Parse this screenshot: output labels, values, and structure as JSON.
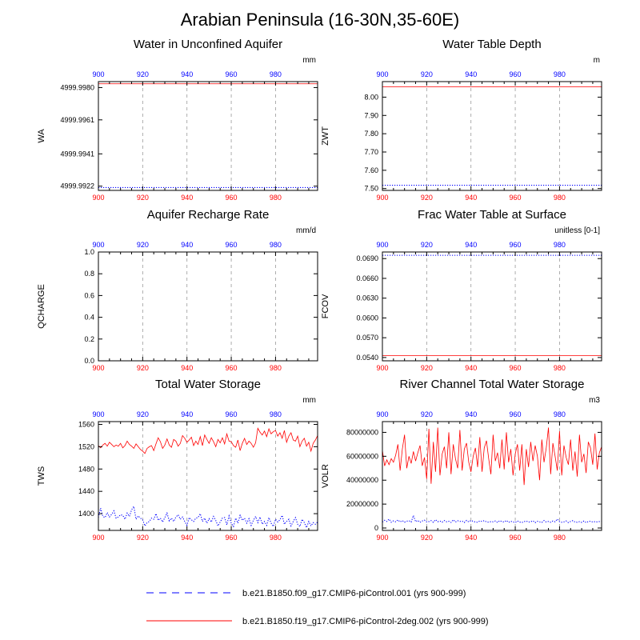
{
  "page_title": "Arabian Peninsula (16-30N,35-60E)",
  "chart_data": [
    {
      "type": "line",
      "title": "Water in Unconfined Aquifer",
      "ylabel": "WA",
      "units": "mm",
      "x_range": [
        900,
        999
      ],
      "x_ticks": [
        900,
        920,
        940,
        960,
        980
      ],
      "ylim": [
        4999.99195,
        4999.99835
      ],
      "y_ticks": [
        "4999.9922",
        "4999.9941",
        "4999.9961",
        "4999.9980"
      ],
      "grid": "vertical dashed",
      "series": [
        {
          "color": "#0000ff",
          "dash": "dotted",
          "constant": 4999.99212
        },
        {
          "color": "#ff0000",
          "dash": "solid",
          "constant": 4999.99822
        }
      ]
    },
    {
      "type": "line",
      "title": "Water Table Depth",
      "ylabel": "ZWT",
      "units": "m",
      "x_range": [
        900,
        999
      ],
      "x_ticks": [
        900,
        920,
        940,
        960,
        980
      ],
      "ylim": [
        7.49,
        8.085
      ],
      "y_ticks": [
        "7.50",
        "7.60",
        "7.70",
        "7.80",
        "7.90",
        "8.00"
      ],
      "grid": "vertical dashed",
      "series": [
        {
          "color": "#0000ff",
          "dash": "dotted",
          "constant": 7.518
        },
        {
          "color": "#ff0000",
          "dash": "solid",
          "constant": 8.057
        }
      ]
    },
    {
      "type": "line",
      "title": "Aquifer Recharge Rate",
      "ylabel": "QCHARGE",
      "units": "mm/d",
      "x_range": [
        900,
        999
      ],
      "x_ticks": [
        900,
        920,
        940,
        960,
        980
      ],
      "ylim": [
        0,
        1.0
      ],
      "y_ticks": [
        "0.0",
        "0.2",
        "0.4",
        "0.6",
        "0.8",
        "1.0"
      ],
      "grid": "vertical dashed",
      "series": [
        {
          "color": "#0000ff",
          "dash": "dotted",
          "constant": 0.0
        },
        {
          "color": "#ff0000",
          "dash": "solid",
          "constant": 0.0
        }
      ]
    },
    {
      "type": "line",
      "title": "Frac Water Table at Surface",
      "ylabel": "FCOV",
      "units": "unitless [0-1]",
      "x_range": [
        900,
        999
      ],
      "x_ticks": [
        900,
        920,
        940,
        960,
        980
      ],
      "ylim": [
        0.0535,
        0.07
      ],
      "y_ticks": [
        "0.0540",
        "0.0570",
        "0.0600",
        "0.0630",
        "0.0660",
        "0.0690"
      ],
      "grid": "vertical dashed",
      "series": [
        {
          "color": "#0000ff",
          "dash": "dotted",
          "constant": 0.0695
        },
        {
          "color": "#ff0000",
          "dash": "solid",
          "constant": 0.0543
        }
      ]
    },
    {
      "type": "line",
      "title": "Total Water Storage",
      "ylabel": "TWS",
      "units": "mm",
      "x_range": [
        900,
        999
      ],
      "x_ticks": [
        900,
        920,
        940,
        960,
        980
      ],
      "ylim": [
        1370,
        1565
      ],
      "y_ticks": [
        "1400",
        "1440",
        "1480",
        "1520",
        "1560"
      ],
      "grid": "vertical dashed",
      "series": [
        {
          "color": "#0000ff",
          "dash": "dotted",
          "start_year": 900,
          "values": [
            1393,
            1410,
            1395,
            1393,
            1402,
            1394,
            1399,
            1405,
            1392,
            1394,
            1398,
            1397,
            1390,
            1401,
            1395,
            1407,
            1413,
            1390,
            1396,
            1392,
            1389,
            1378,
            1384,
            1386,
            1392,
            1390,
            1400,
            1388,
            1392,
            1385,
            1393,
            1401,
            1387,
            1392,
            1386,
            1394,
            1398,
            1390,
            1394,
            1386,
            1379,
            1393,
            1389,
            1386,
            1392,
            1393,
            1400,
            1386,
            1392,
            1383,
            1391,
            1385,
            1395,
            1388,
            1378,
            1385,
            1392,
            1393,
            1380,
            1396,
            1383,
            1377,
            1392,
            1383,
            1397,
            1388,
            1392,
            1383,
            1391,
            1379,
            1388,
            1395,
            1384,
            1394,
            1381,
            1386,
            1379,
            1393,
            1383,
            1377,
            1390,
            1385,
            1389,
            1397,
            1381,
            1386,
            1390,
            1378,
            1386,
            1393,
            1381,
            1377,
            1390,
            1384,
            1375,
            1386,
            1378,
            1384,
            1381,
            1385
          ]
        },
        {
          "color": "#ff0000",
          "dash": "solid",
          "start_year": 900,
          "values": [
            1522,
            1518,
            1523,
            1526,
            1521,
            1528,
            1524,
            1520,
            1523,
            1521,
            1526,
            1518,
            1522,
            1530,
            1524,
            1521,
            1517,
            1525,
            1520,
            1515,
            1512,
            1508,
            1517,
            1520,
            1522,
            1513,
            1525,
            1536,
            1529,
            1517,
            1523,
            1534,
            1523,
            1519,
            1533,
            1530,
            1521,
            1526,
            1540,
            1535,
            1528,
            1532,
            1537,
            1522,
            1530,
            1524,
            1538,
            1522,
            1541,
            1533,
            1526,
            1536,
            1529,
            1520,
            1533,
            1527,
            1536,
            1525,
            1543,
            1530,
            1529,
            1522,
            1519,
            1532,
            1513,
            1526,
            1535,
            1524,
            1530,
            1526,
            1519,
            1527,
            1553,
            1546,
            1541,
            1548,
            1538,
            1552,
            1543,
            1547,
            1549,
            1539,
            1545,
            1535,
            1549,
            1528,
            1539,
            1545,
            1532,
            1530,
            1539,
            1520,
            1530,
            1535,
            1521,
            1528,
            1512,
            1526,
            1532,
            1540
          ]
        }
      ]
    },
    {
      "type": "line",
      "title": "River Channel Total Water Storage",
      "ylabel": "VOLR",
      "units": "m3",
      "x_range": [
        900,
        999
      ],
      "x_ticks": [
        900,
        920,
        940,
        960,
        980
      ],
      "ylim": [
        -2000000,
        89000000
      ],
      "y_ticks": [
        "0",
        "20000000",
        "40000000",
        "60000000",
        "80000000"
      ],
      "grid": "vertical dashed",
      "series": [
        {
          "color": "#0000ff",
          "dash": "dotted",
          "start_year": 900,
          "values": [
            5000000,
            6500000,
            5500000,
            7500000,
            4800000,
            6000000,
            5200000,
            6800000,
            5100000,
            6200000,
            4900000,
            5700000,
            6100000,
            5000000,
            10500000,
            5300000,
            6400000,
            4700000,
            5900000,
            6600000,
            5100000,
            5400000,
            6200000,
            4800000,
            7000000,
            5300000,
            5800000,
            4900000,
            6300000,
            5200000,
            5600000,
            4700000,
            6900000,
            5000000,
            6100000,
            5500000,
            5800000,
            4600000,
            6400000,
            5100000,
            6300000,
            5600000,
            5000000,
            4800000,
            5900000,
            5500000,
            6200000,
            5100000,
            4900000,
            5300000,
            5200000,
            5900000,
            4600000,
            6100000,
            5400000,
            5000000,
            6300000,
            4700000,
            5600000,
            5100000,
            4600000,
            5900000,
            5000000,
            4600000,
            5400000,
            5800000,
            4900000,
            5300000,
            6000000,
            4500000,
            5600000,
            5100000,
            4700000,
            6300000,
            5000000,
            5500000,
            4800000,
            5900000,
            5200000,
            7500000,
            5300000,
            4800000,
            5100000,
            5900000,
            4500000,
            5500000,
            6200000,
            5000000,
            4800000,
            5300000,
            4700000,
            5800000,
            4500000,
            5400000,
            5700000,
            5000000,
            5300000,
            5100000,
            5400000,
            5600000
          ]
        },
        {
          "color": "#ff0000",
          "dash": "solid",
          "start_year": 900,
          "values": [
            65000000,
            52000000,
            57000000,
            53000000,
            58000000,
            55000000,
            61000000,
            70000000,
            48000000,
            66000000,
            78000000,
            50000000,
            60000000,
            54000000,
            64000000,
            56000000,
            63000000,
            69000000,
            52000000,
            59000000,
            41000000,
            83000000,
            37000000,
            72000000,
            47000000,
            84000000,
            44000000,
            62000000,
            68000000,
            50000000,
            80000000,
            45000000,
            70000000,
            58000000,
            50000000,
            82000000,
            48000000,
            66000000,
            71000000,
            55000000,
            47000000,
            60000000,
            67000000,
            51000000,
            76000000,
            47000000,
            67000000,
            73000000,
            58000000,
            45000000,
            78000000,
            56000000,
            63000000,
            50000000,
            74000000,
            49000000,
            80000000,
            55000000,
            66000000,
            44000000,
            62000000,
            70000000,
            48000000,
            70000000,
            36000000,
            66000000,
            51000000,
            72000000,
            56000000,
            69000000,
            60000000,
            40000000,
            74000000,
            55000000,
            67000000,
            84000000,
            45000000,
            71000000,
            60000000,
            48000000,
            81000000,
            44000000,
            69000000,
            59000000,
            53000000,
            74000000,
            48000000,
            64000000,
            43000000,
            78000000,
            55000000,
            62000000,
            46000000,
            72000000,
            67000000,
            53000000,
            79000000,
            49000000,
            63000000,
            68000000
          ]
        }
      ]
    }
  ],
  "legend": {
    "placement": "bottom",
    "entries": [
      {
        "label": "b.e21.B1850.f09_g17.CMIP6-piControl.001 (yrs 900-999)",
        "color": "#0000ff",
        "dash": "dashed"
      },
      {
        "label": "b.e21.B1850.f19_g17.CMIP6-piControl-2deg.002 (yrs 900-999)",
        "color": "#ff0000",
        "dash": "solid"
      }
    ]
  },
  "x_tick_colors": {
    "top": "#0000ff",
    "bottom": "#ff0000"
  }
}
